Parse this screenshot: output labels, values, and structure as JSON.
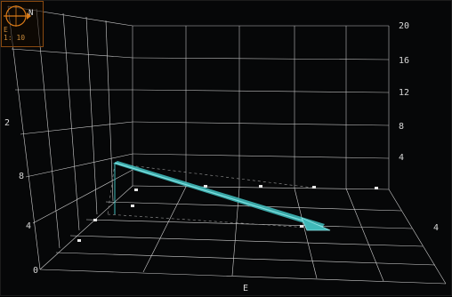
{
  "compass": {
    "north_label": "N",
    "east_label": "E",
    "readout": "1: 10",
    "icon": "compass-icon",
    "accent_color": "#d97a18"
  },
  "axes": {
    "right_vertical_ticks": [
      "20",
      "16",
      "12",
      "8",
      "4"
    ],
    "left_vertical_ticks": [
      "2",
      "8",
      "4",
      "0"
    ],
    "bottom_label": "E",
    "right_edge_label": "4"
  },
  "colors": {
    "grid": "#cfcfcf",
    "arrow": "#45c4c4",
    "background": "#060708"
  }
}
